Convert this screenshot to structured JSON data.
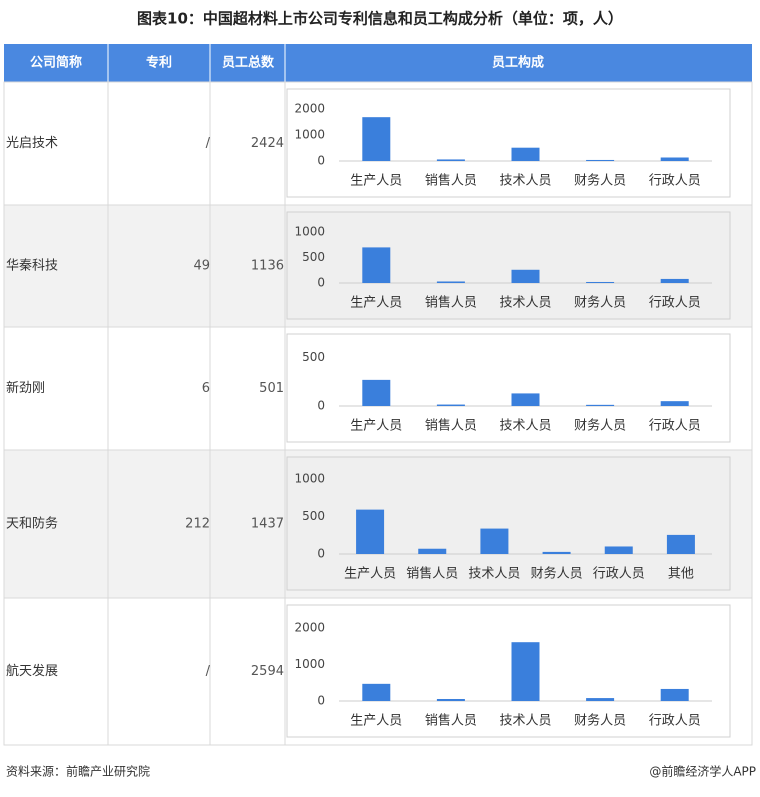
{
  "title": "图表10：中国超材料上市公司专利信息和员工构成分析（单位：项，人）",
  "table": {
    "header": [
      "公司简称",
      "专利",
      "员工总数",
      "员工构成"
    ],
    "rows": [
      {
        "company": "光启技术",
        "patent": "/",
        "employees": 2424,
        "chart": {
          "type": "bar",
          "categories": [
            "生产人员",
            "销售人员",
            "技术人员",
            "财务人员",
            "行政人员"
          ],
          "values": [
            1680,
            60,
            510,
            40,
            134
          ],
          "ylim": [
            0,
            2300
          ],
          "yticks": [
            0,
            1000,
            2000
          ],
          "color": "#3a7fdc"
        }
      },
      {
        "company": "华秦科技",
        "patent": 49,
        "employees": 1136,
        "chart": {
          "type": "bar",
          "categories": [
            "生产人员",
            "销售人员",
            "技术人员",
            "财务人员",
            "行政人员"
          ],
          "values": [
            700,
            30,
            260,
            20,
            80
          ],
          "ylim": [
            0,
            1160
          ],
          "yticks": [
            0,
            500,
            1000
          ],
          "color": "#3a7fdc"
        }
      },
      {
        "company": "新劲刚",
        "patent": 6,
        "employees": 501,
        "chart": {
          "type": "bar",
          "categories": [
            "生产人员",
            "销售人员",
            "技术人员",
            "财务人员",
            "行政人员"
          ],
          "values": [
            270,
            15,
            130,
            12,
            50
          ],
          "ylim": [
            0,
            620
          ],
          "yticks": [
            0,
            500
          ],
          "color": "#3a7fdc"
        }
      },
      {
        "company": "天和防务",
        "patent": 212,
        "employees": 1437,
        "chart": {
          "type": "bar",
          "categories": [
            "生产人员",
            "销售人员",
            "技术人员",
            "财务人员",
            "行政人员",
            "其他"
          ],
          "values": [
            590,
            70,
            338,
            28,
            100,
            254
          ],
          "ylim": [
            0,
            1130
          ],
          "yticks": [
            0,
            500,
            1000
          ],
          "color": "#3a7fdc"
        }
      },
      {
        "company": "航天发展",
        "patent": "/",
        "employees": 2594,
        "chart": {
          "type": "bar",
          "categories": [
            "生产人员",
            "销售人员",
            "技术人员",
            "财务人员",
            "行政人员"
          ],
          "values": [
            470,
            55,
            1610,
            80,
            330
          ],
          "ylim": [
            0,
            2300
          ],
          "yticks": [
            0,
            1000,
            2000
          ],
          "color": "#3a7fdc"
        }
      }
    ]
  },
  "footer": {
    "source": "资料来源：前瞻产业研究院",
    "credit": "@前瞻经济学人APP"
  }
}
